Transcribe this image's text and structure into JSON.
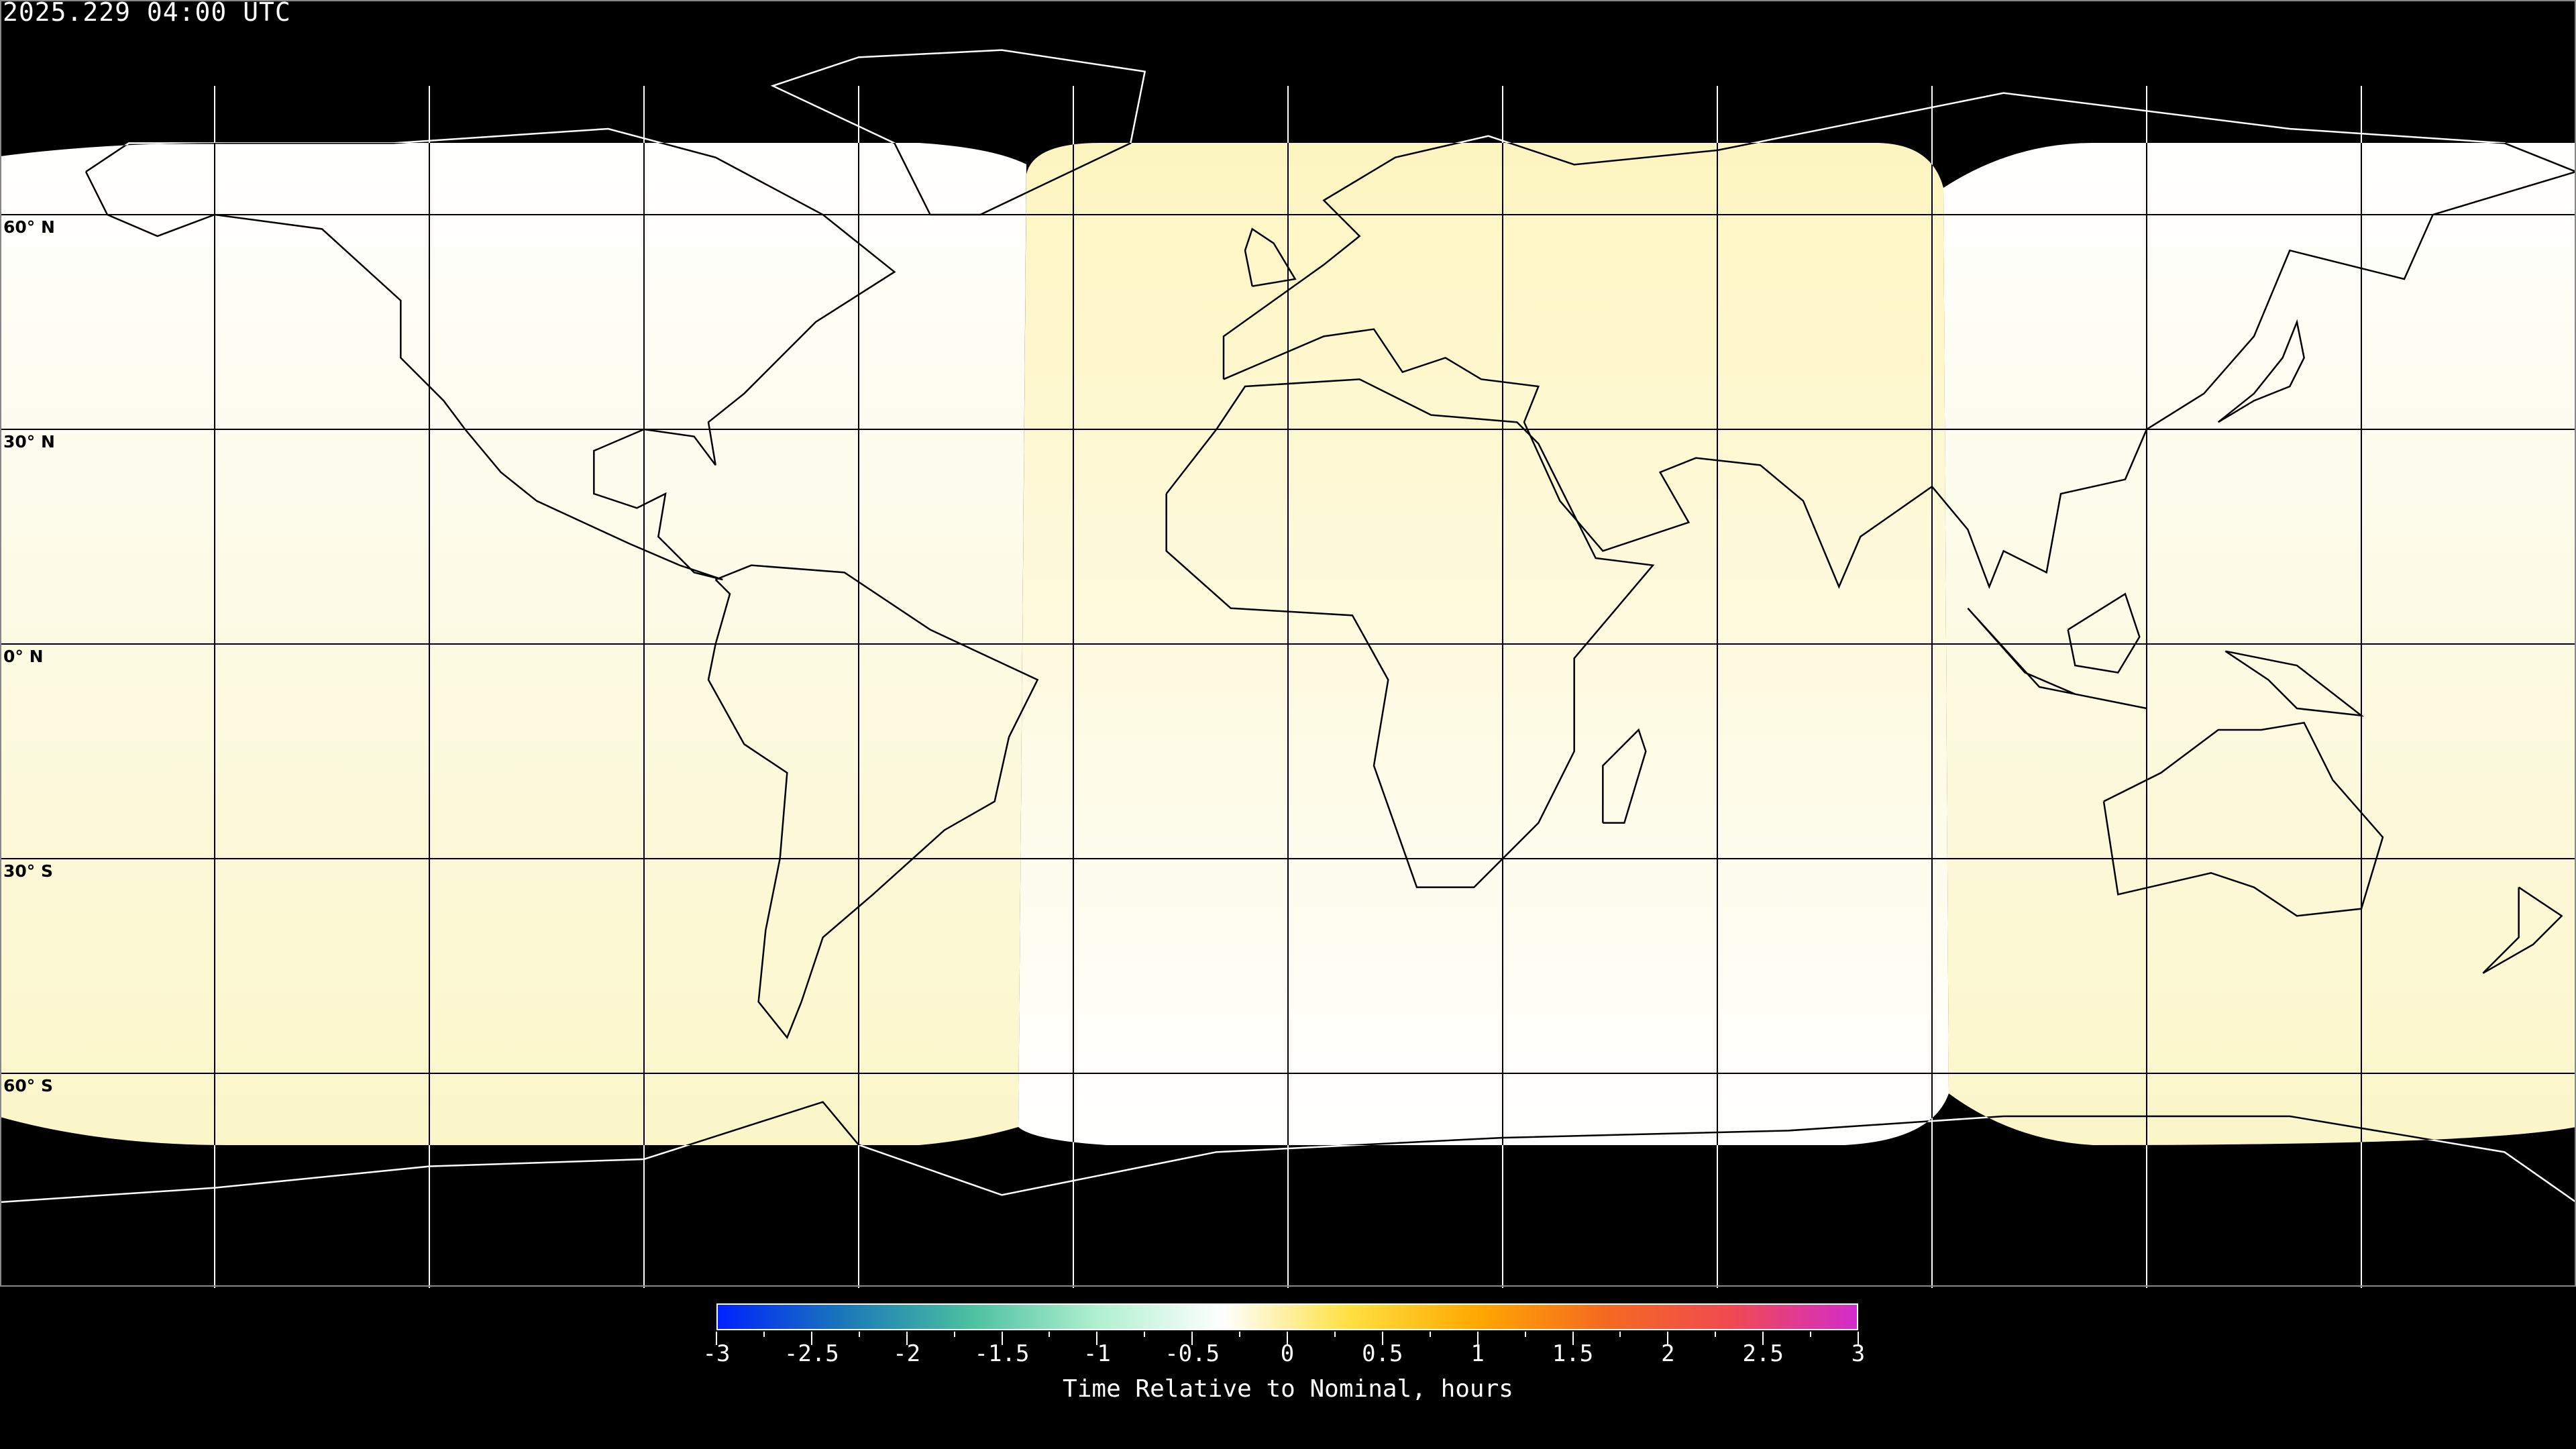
{
  "title": "2025.229 04:00 UTC",
  "map": {
    "projection": "equirectangular",
    "gridline_spacing_degrees": 30,
    "latitude_labels": [
      "60° N",
      "30° N",
      "0° N",
      "30° S",
      "60° S"
    ],
    "latitude_values": [
      60,
      30,
      0,
      -30,
      -60
    ],
    "regions": [
      {
        "name": "west",
        "color_top": "#ffffff",
        "color_bottom": "#fbf6c8"
      },
      {
        "name": "central",
        "color_top": "#fdf5c0",
        "color_bottom": "#ffffff"
      },
      {
        "name": "east",
        "color_top": "#ffffff",
        "color_bottom": "#fbf6c8"
      }
    ],
    "no_data_color": "#000000"
  },
  "colorbar": {
    "label": "Time Relative to Nominal, hours",
    "min": -3,
    "max": 3,
    "tick_labels": [
      "-3",
      "-2.5",
      "-2",
      "-1.5",
      "-1",
      "-0.5",
      "0",
      "0.5",
      "1",
      "1.5",
      "2",
      "2.5",
      "3"
    ],
    "colors": [
      "#0022ff",
      "#1a78b8",
      "#4cc0a0",
      "#b0f0d0",
      "#ffffff",
      "#ffe040",
      "#ffa800",
      "#f46a20",
      "#f04a50",
      "#d22ccc"
    ]
  }
}
